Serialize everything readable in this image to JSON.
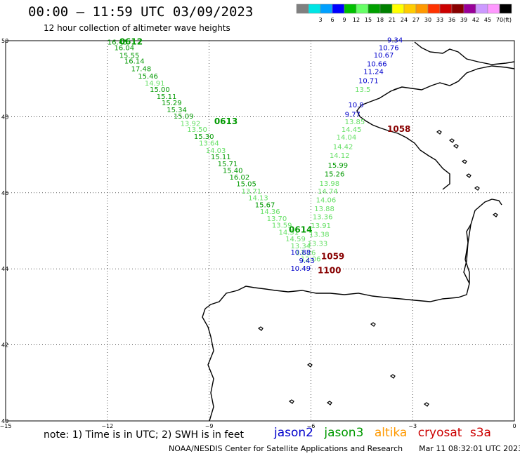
{
  "title": "00:00 – 11:59 UTC 03/09/2023",
  "subtitle": "12 hour collection of altimeter wave heights",
  "note": "note: 1) Time is in UTC; 2) SWH is in feet",
  "credit": "NOAA/NESDIS Center for Satellite Applications and Research",
  "generated": "Mar 11 08:32:01 UTC 2023",
  "legend": [
    {
      "label": "jason2",
      "color": "#0000cc"
    },
    {
      "label": "jason3",
      "color": "#009900"
    },
    {
      "label": "altika",
      "color": "#ff9900"
    },
    {
      "label": "cryosat",
      "color": "#cc0000"
    },
    {
      "label": "s3a",
      "color": "#cc0000"
    }
  ],
  "scale": {
    "unit": "(ft)",
    "bins": [
      {
        "color": "#808080",
        "label": ""
      },
      {
        "color": "#00e5e5",
        "label": "3"
      },
      {
        "color": "#00a0ff",
        "label": "6"
      },
      {
        "color": "#0000ff",
        "label": "9"
      },
      {
        "color": "#00c000",
        "label": "12"
      },
      {
        "color": "#66ff66",
        "label": "15"
      },
      {
        "color": "#00a000",
        "label": "18"
      },
      {
        "color": "#008000",
        "label": "21"
      },
      {
        "color": "#ffff00",
        "label": "24"
      },
      {
        "color": "#ffcc00",
        "label": "27"
      },
      {
        "color": "#ff9900",
        "label": "30"
      },
      {
        "color": "#ff3300",
        "label": "33"
      },
      {
        "color": "#cc0000",
        "label": "36"
      },
      {
        "color": "#880000",
        "label": "39"
      },
      {
        "color": "#990099",
        "label": "42"
      },
      {
        "color": "#cc99ff",
        "label": "45"
      },
      {
        "color": "#ff99ff",
        "label": "70"
      },
      {
        "color": "#000000",
        "label": ""
      }
    ]
  },
  "map": {
    "lon_range": [
      -15,
      0
    ],
    "lat_range": [
      40,
      50
    ],
    "lat_ticks": [
      50,
      48,
      46,
      44,
      42,
      40
    ],
    "lon_ticks": [
      -15,
      -12,
      -9,
      -6,
      -3,
      0
    ],
    "lat_labels": [
      "50",
      "48",
      "46",
      "44",
      "42",
      "40"
    ],
    "lon_labels": [
      "−15",
      "−12",
      "−9",
      "−6",
      "−3",
      "0"
    ]
  },
  "tracks": [
    {
      "time": "0612",
      "time_lon": -11.65,
      "time_lat": 49.9,
      "color": "#009900",
      "points": [
        {
          "v": "16.45",
          "lon": -12.0,
          "lat": 49.9
        },
        {
          "v": "16.04",
          "lon": -11.8,
          "lat": 49.75
        },
        {
          "v": "15.55",
          "lon": -11.65,
          "lat": 49.55
        },
        {
          "v": "16.14",
          "lon": -11.5,
          "lat": 49.4
        },
        {
          "v": "17.48",
          "lon": -11.3,
          "lat": 49.2
        },
        {
          "v": "15.46",
          "lon": -11.1,
          "lat": 49.0
        },
        {
          "v": "14.91",
          "lon": -10.9,
          "lat": 48.82
        },
        {
          "v": "15.00",
          "lon": -10.75,
          "lat": 48.65
        },
        {
          "v": "15.11",
          "lon": -10.55,
          "lat": 48.47
        },
        {
          "v": "15.29",
          "lon": -10.4,
          "lat": 48.3
        },
        {
          "v": "15.34",
          "lon": -10.25,
          "lat": 48.12
        },
        {
          "v": "15.09",
          "lon": -10.05,
          "lat": 47.95
        },
        {
          "v": "13.92",
          "lon": -9.85,
          "lat": 47.76
        },
        {
          "v": "13.50",
          "lon": -9.65,
          "lat": 47.6
        },
        {
          "v": "15.30",
          "lon": -9.45,
          "lat": 47.42
        },
        {
          "v": "13.64",
          "lon": -9.3,
          "lat": 47.24
        },
        {
          "v": "14.03",
          "lon": -9.1,
          "lat": 47.05
        },
        {
          "v": "15.11",
          "lon": -8.95,
          "lat": 46.88
        },
        {
          "v": "15.71",
          "lon": -8.75,
          "lat": 46.7
        },
        {
          "v": "15.40",
          "lon": -8.6,
          "lat": 46.52
        },
        {
          "v": "16.02",
          "lon": -8.4,
          "lat": 46.35
        },
        {
          "v": "15.05",
          "lon": -8.2,
          "lat": 46.17
        },
        {
          "v": "13.71",
          "lon": -8.05,
          "lat": 45.98
        },
        {
          "v": "14.13",
          "lon": -7.85,
          "lat": 45.8
        },
        {
          "v": "15.67",
          "lon": -7.65,
          "lat": 45.62
        },
        {
          "v": "14.36",
          "lon": -7.5,
          "lat": 45.44
        },
        {
          "v": "13.70",
          "lon": -7.3,
          "lat": 45.26
        },
        {
          "v": "13.59",
          "lon": -7.15,
          "lat": 45.08
        },
        {
          "v": "14.51",
          "lon": -6.95,
          "lat": 44.9
        },
        {
          "v": "14.59",
          "lon": -6.75,
          "lat": 44.72
        },
        {
          "v": "13.34",
          "lon": -6.6,
          "lat": 44.54
        },
        {
          "v": "13.26",
          "lon": -6.45,
          "lat": 44.36
        },
        {
          "v": "12.06",
          "lon": -6.3,
          "lat": 44.2
        }
      ]
    },
    {
      "time": "0613",
      "time_lon": -8.85,
      "time_lat": 47.8,
      "color": "#009900",
      "points": []
    },
    {
      "time": "0614",
      "time_lon": -6.65,
      "time_lat": 44.95,
      "color": "#009900",
      "points": []
    },
    {
      "time": "1058",
      "time_lon": -3.75,
      "time_lat": 47.6,
      "color": "#880000",
      "points": [
        {
          "v": "9.34",
          "lon": -3.75,
          "lat": 49.95
        },
        {
          "v": "10.76",
          "lon": -4.0,
          "lat": 49.75
        },
        {
          "v": "10.67",
          "lon": -4.15,
          "lat": 49.56
        },
        {
          "v": "10.66",
          "lon": -4.35,
          "lat": 49.33
        },
        {
          "v": "11.24",
          "lon": -4.45,
          "lat": 49.12
        },
        {
          "v": "10.71",
          "lon": -4.6,
          "lat": 48.88
        },
        {
          "v": "13.5",
          "lon": -4.7,
          "lat": 48.65
        },
        {
          "v": "10.9",
          "lon": -4.9,
          "lat": 48.25
        },
        {
          "v": "9.77",
          "lon": -5.0,
          "lat": 48.0
        },
        {
          "v": "13.85",
          "lon": -5.0,
          "lat": 47.8
        },
        {
          "v": "14.45",
          "lon": -5.1,
          "lat": 47.6
        },
        {
          "v": "14.04",
          "lon": -5.25,
          "lat": 47.4
        },
        {
          "v": "14.42",
          "lon": -5.35,
          "lat": 47.15
        },
        {
          "v": "14.12",
          "lon": -5.45,
          "lat": 46.92
        },
        {
          "v": "15.99",
          "lon": -5.5,
          "lat": 46.66
        },
        {
          "v": "15.26",
          "lon": -5.6,
          "lat": 46.43
        },
        {
          "v": "13.98",
          "lon": -5.75,
          "lat": 46.18
        },
        {
          "v": "14.74",
          "lon": -5.8,
          "lat": 45.98
        },
        {
          "v": "14.06",
          "lon": -5.85,
          "lat": 45.75
        },
        {
          "v": "13.88",
          "lon": -5.9,
          "lat": 45.52
        },
        {
          "v": "13.36",
          "lon": -5.95,
          "lat": 45.3
        },
        {
          "v": "13.91",
          "lon": -6.0,
          "lat": 45.07
        },
        {
          "v": "13.38",
          "lon": -6.05,
          "lat": 44.84
        },
        {
          "v": "13.33",
          "lon": -6.1,
          "lat": 44.6
        },
        {
          "v": "10.88",
          "lon": -6.6,
          "lat": 44.37
        },
        {
          "v": "9.43",
          "lon": -6.35,
          "lat": 44.15
        },
        {
          "v": "10.49",
          "lon": -6.6,
          "lat": 43.95
        }
      ]
    },
    {
      "time": "1059",
      "time_lon": -5.7,
      "time_lat": 44.25,
      "color": "#880000",
      "points": []
    },
    {
      "time": "1100",
      "time_lon": -5.8,
      "time_lat": 43.88,
      "color": "#880000",
      "points": []
    }
  ]
}
